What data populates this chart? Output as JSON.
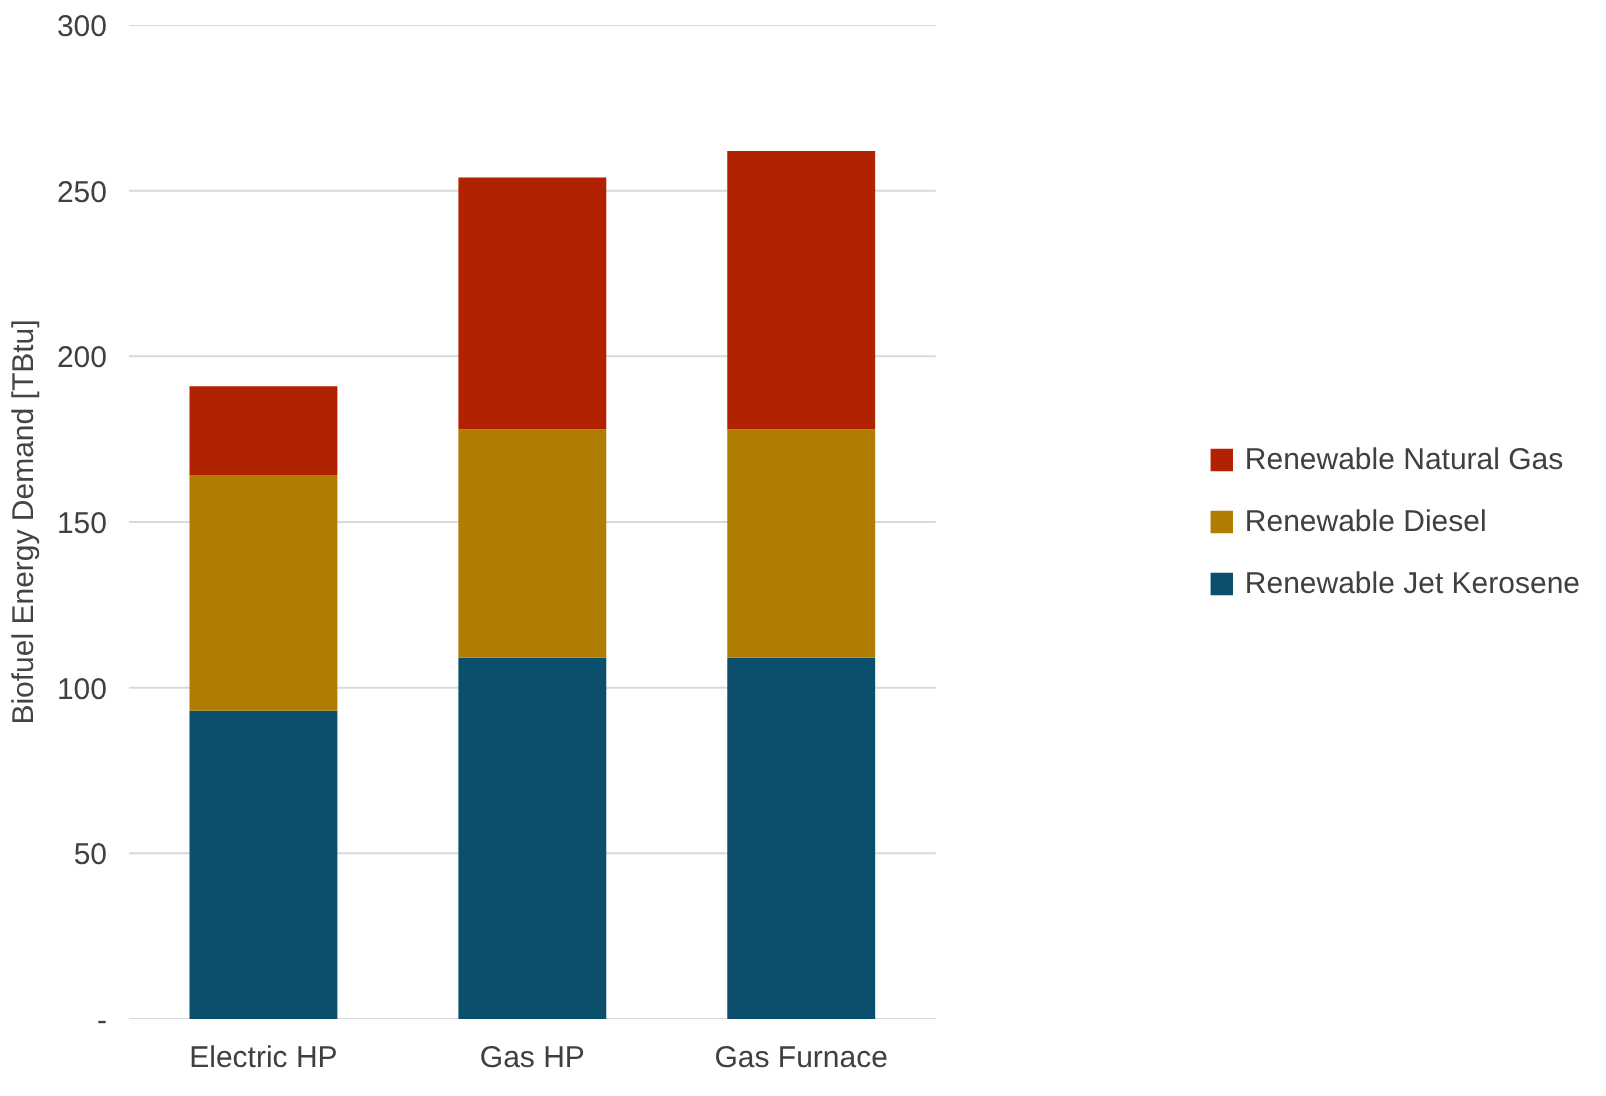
{
  "chart_data": {
    "type": "bar",
    "stacked": true,
    "ylabel": "Biofuel Energy Demand [TBtu]",
    "categories": [
      "Electric HP",
      "Gas HP",
      "Gas Furnace"
    ],
    "series": [
      {
        "name": "Renewable Jet Kerosene",
        "color": "#0b4f6c",
        "values": [
          93,
          109,
          109
        ]
      },
      {
        "name": "Renewable Diesel",
        "color": "#b07d00",
        "values": [
          71,
          69,
          69
        ]
      },
      {
        "name": "Renewable Natural Gas",
        "color": "#b02200",
        "values": [
          27,
          76,
          84
        ]
      }
    ],
    "ylim": [
      0,
      300
    ],
    "yticks": [
      {
        "value": 0,
        "label": "-"
      },
      50,
      100,
      150,
      200,
      250,
      300
    ],
    "grid": "y",
    "legend": "right"
  }
}
